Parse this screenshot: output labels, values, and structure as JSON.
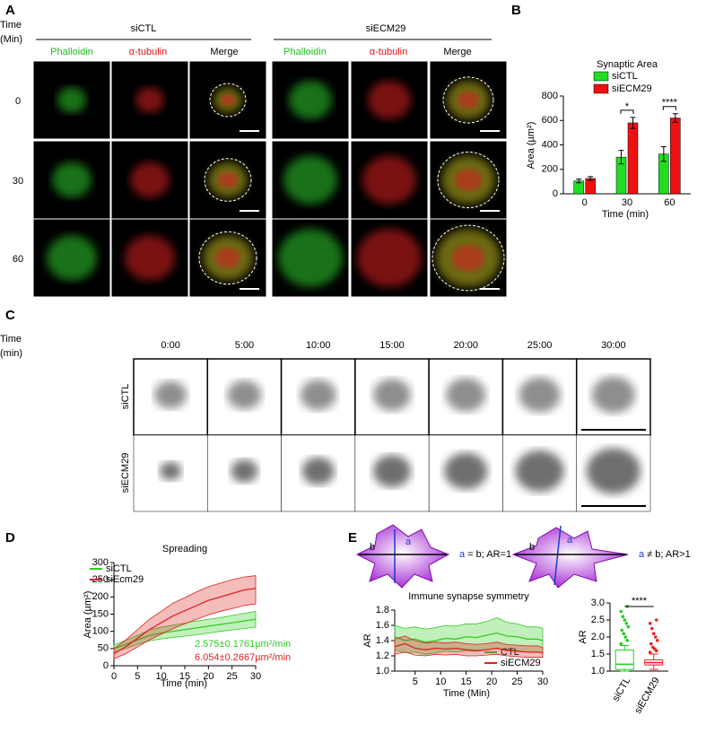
{
  "panels": {
    "A": {
      "label": "A",
      "time_label": [
        "Time",
        "(Min)"
      ],
      "groups": [
        {
          "name": "siCTL",
          "channels": [
            "Phalloidin",
            "α-tubulin",
            "Merge"
          ]
        },
        {
          "name": "siECM29",
          "channels": [
            "Phalloidin",
            "α-tubulin",
            "Merge"
          ]
        }
      ],
      "times": [
        "0",
        "30",
        "60"
      ]
    },
    "B": {
      "label": "B"
    },
    "C": {
      "label": "C",
      "time_label": [
        "Time",
        "(min)"
      ],
      "times": [
        "0:00",
        "5:00",
        "10:00",
        "15:00",
        "20:00",
        "25:00",
        "30:00"
      ],
      "rows": [
        "siCTL",
        "siECM29"
      ]
    },
    "D": {
      "label": "D"
    },
    "E": {
      "label": "E",
      "diagrams": [
        {
          "a": "a",
          "b": "b",
          "lead": "a",
          "rest": " = b; AR=1"
        },
        {
          "a": "a",
          "b": "b",
          "lead": "a",
          "rest": " ≠ b; AR>1"
        }
      ]
    }
  },
  "chart_data": [
    {
      "type": "bar",
      "title": "Synaptic Area",
      "categories": [
        "0",
        "30",
        "60"
      ],
      "x_label": "Time (min)",
      "y_label": "Area (µm²)",
      "ylim": [
        0,
        800
      ],
      "yticks": [
        0,
        200,
        400,
        600,
        800
      ],
      "legend": "top-right",
      "annotations": [
        null,
        "*",
        "****"
      ],
      "series": [
        {
          "name": "siCTL",
          "color": "#22dd22",
          "values": [
            105,
            300,
            325
          ],
          "errors": [
            15,
            55,
            60
          ]
        },
        {
          "name": "siECM29",
          "color": "#ee1111",
          "values": [
            125,
            580,
            620
          ],
          "errors": [
            15,
            45,
            35
          ]
        }
      ]
    },
    {
      "type": "line",
      "title": "Spreading",
      "x_label": "Time (min)",
      "y_label": "Area (µm²)",
      "x": [
        0,
        2.5,
        5,
        7.5,
        10,
        12.5,
        15,
        17.5,
        20,
        22.5,
        25,
        27.5,
        30
      ],
      "xlim": [
        0,
        30
      ],
      "xticks": [
        0,
        5,
        10,
        15,
        20,
        25,
        30
      ],
      "ylim": [
        0,
        300
      ],
      "yticks": [
        0,
        50,
        100,
        150,
        200,
        250,
        300
      ],
      "legend": "top-left",
      "series": [
        {
          "name": "siCTL",
          "color": "#33cc22",
          "annotation": "2.575±0.1761µm²/min",
          "values": [
            50,
            62,
            75,
            88,
            95,
            100,
            105,
            110,
            115,
            120,
            125,
            130,
            135
          ],
          "lower": [
            40,
            50,
            62,
            72,
            78,
            82,
            86,
            90,
            95,
            100,
            104,
            108,
            112
          ],
          "upper": [
            60,
            74,
            88,
            104,
            112,
            118,
            124,
            130,
            135,
            140,
            146,
            152,
            158
          ]
        },
        {
          "name": "siEcm29",
          "color": "#dd2222",
          "annotation": "6.054±0.2667µm²/min",
          "values": [
            35,
            55,
            80,
            105,
            125,
            145,
            160,
            175,
            190,
            200,
            210,
            220,
            225
          ],
          "lower": [
            20,
            35,
            55,
            75,
            92,
            108,
            122,
            135,
            148,
            158,
            166,
            175,
            180
          ],
          "upper": [
            50,
            75,
            105,
            135,
            158,
            182,
            198,
            215,
            230,
            240,
            250,
            258,
            262
          ]
        }
      ]
    },
    {
      "type": "line",
      "title": "Immune synapse symmetry",
      "x_label": "Time (Min)",
      "y_label": "AR",
      "x": [
        1,
        3,
        5,
        7,
        9,
        11,
        13,
        15,
        17,
        19,
        21,
        23,
        25,
        27,
        29,
        30
      ],
      "xlim": [
        1,
        30
      ],
      "xticks": [
        5,
        10,
        15,
        20,
        25,
        30
      ],
      "ylim": [
        1,
        1.8
      ],
      "yticks": [
        {
          "value": 1,
          "label": "1.0"
        },
        1.2,
        1.4,
        1.6,
        1.8
      ],
      "legend": "bottom-right",
      "series": [
        {
          "name": "CTL",
          "color": "#33cc22",
          "values": [
            1.45,
            1.4,
            1.42,
            1.38,
            1.4,
            1.43,
            1.42,
            1.45,
            1.44,
            1.47,
            1.5,
            1.46,
            1.45,
            1.42,
            1.42,
            1.4
          ],
          "lower": [
            1.28,
            1.24,
            1.25,
            1.22,
            1.24,
            1.26,
            1.25,
            1.27,
            1.26,
            1.28,
            1.3,
            1.28,
            1.27,
            1.25,
            1.25,
            1.24
          ],
          "upper": [
            1.6,
            1.56,
            1.58,
            1.55,
            1.57,
            1.6,
            1.59,
            1.62,
            1.62,
            1.65,
            1.7,
            1.64,
            1.62,
            1.58,
            1.58,
            1.56
          ]
        },
        {
          "name": "siECM29",
          "color": "#dd2222",
          "values": [
            1.32,
            1.36,
            1.3,
            1.28,
            1.3,
            1.29,
            1.3,
            1.28,
            1.27,
            1.28,
            1.3,
            1.27,
            1.26,
            1.25,
            1.25,
            1.24
          ],
          "lower": [
            1.22,
            1.25,
            1.21,
            1.2,
            1.22,
            1.21,
            1.22,
            1.2,
            1.2,
            1.21,
            1.22,
            1.2,
            1.19,
            1.18,
            1.18,
            1.18
          ],
          "upper": [
            1.42,
            1.46,
            1.4,
            1.37,
            1.38,
            1.37,
            1.38,
            1.36,
            1.35,
            1.36,
            1.38,
            1.35,
            1.34,
            1.33,
            1.33,
            1.31
          ]
        }
      ]
    },
    {
      "type": "box",
      "y_label": "AR",
      "categories": [
        "siCTL",
        "siECM29"
      ],
      "ylim": [
        1,
        3
      ],
      "yticks": [
        {
          "value": 1,
          "label": "1.0"
        },
        1.5,
        {
          "value": 2,
          "label": "2.0"
        },
        2.5,
        {
          "value": 3,
          "label": "3.0"
        }
      ],
      "annotations": [
        "****"
      ],
      "boxes": [
        {
          "color": "#22cc22",
          "min": 1.0,
          "q1": 1.05,
          "median": 1.2,
          "q3": 1.62,
          "max": 1.75,
          "outliers": [
            1.8,
            1.9,
            2.0,
            2.1,
            2.2,
            2.3,
            2.4,
            2.5,
            2.6,
            2.75,
            2.9
          ]
        },
        {
          "color": "#ee2222",
          "min": 1.05,
          "q1": 1.18,
          "median": 1.25,
          "q3": 1.33,
          "max": 1.5,
          "outliers": [
            1.55,
            1.6,
            1.65,
            1.7,
            1.8,
            1.9,
            2.0,
            2.1,
            2.25,
            2.4,
            2.5
          ]
        }
      ]
    }
  ]
}
